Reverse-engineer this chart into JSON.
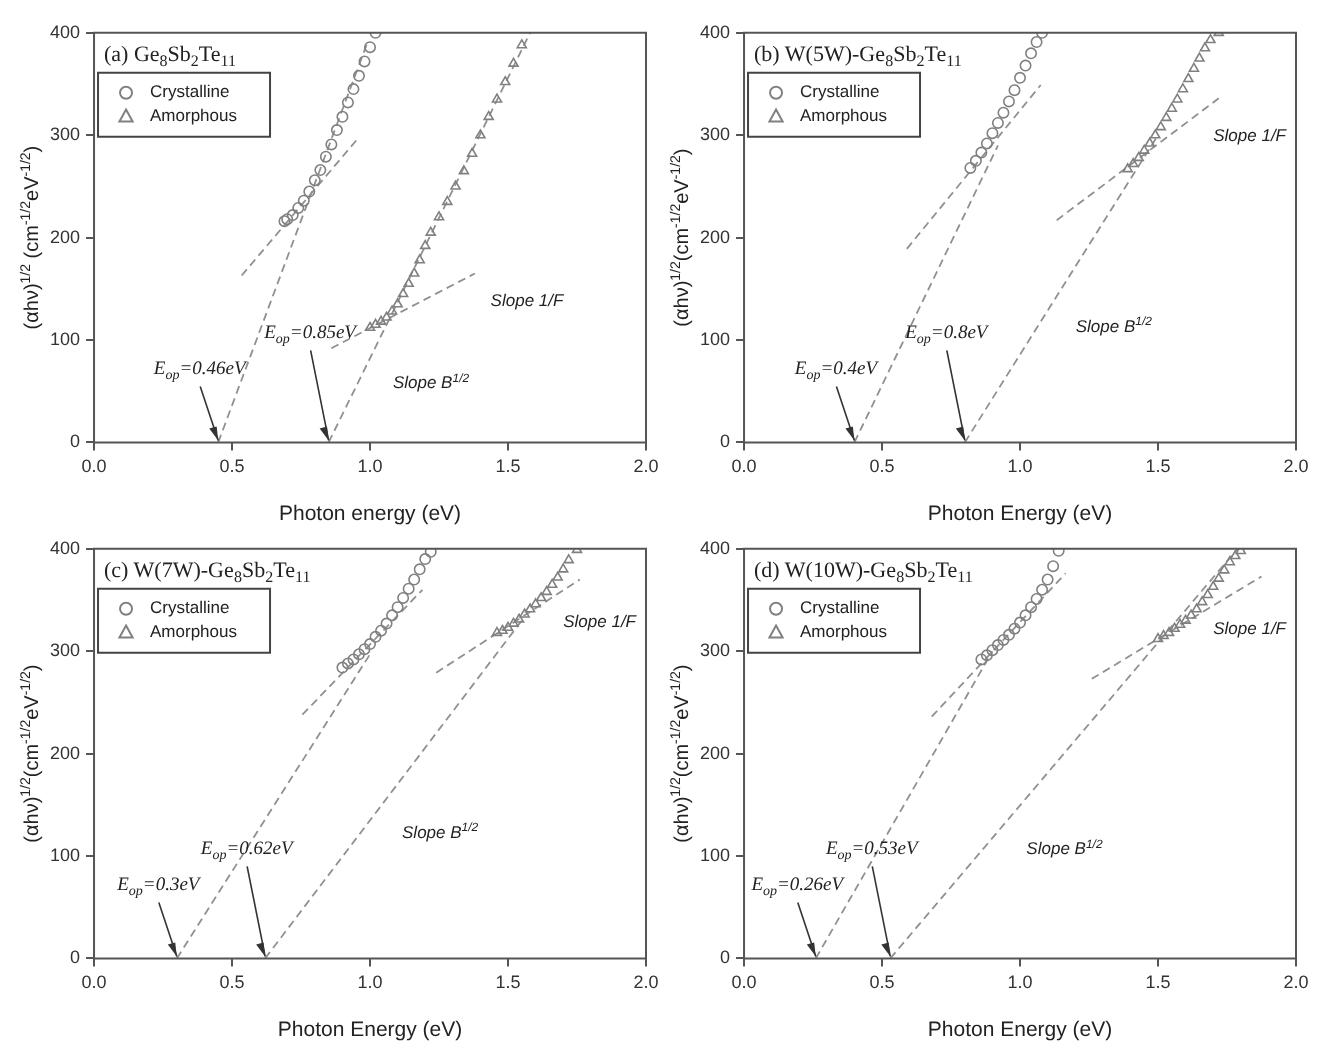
{
  "chart_data": [
    {
      "type": "scatter",
      "title": "(a) Ge$_{8}$Sb$_{2}$Te$_{11}$",
      "xlabel": "Photon energy (eV)",
      "ylabel": "(αhν)$^{1/2}$ (cm$^{-1/2}$eV$^{-1/2}$)",
      "xlim": [
        0,
        2
      ],
      "ylim": [
        0,
        400
      ],
      "xticks": [
        {
          "value": 0,
          "label": "0.0"
        },
        {
          "value": 0.5,
          "label": "0.5"
        },
        {
          "value": 1,
          "label": "1.0"
        },
        {
          "value": 1.5,
          "label": "1.5"
        },
        {
          "value": 2,
          "label": "2.0"
        }
      ],
      "yticks": [
        0,
        100,
        200,
        300,
        400
      ],
      "grid": false,
      "legend": "top left",
      "series": [
        {
          "name": "Crystalline",
          "type": "scatter",
          "marker": "circle",
          "color": "#808080",
          "x": [
            0.69,
            0.7,
            0.72,
            0.74,
            0.76,
            0.78,
            0.8,
            0.82,
            0.84,
            0.86,
            0.88,
            0.9,
            0.92,
            0.94,
            0.96,
            0.98,
            1.0,
            1.02
          ],
          "values": [
            216,
            218,
            222,
            229,
            236,
            245,
            256,
            266,
            279,
            291,
            305,
            318,
            332,
            345,
            358,
            372,
            386,
            400
          ]
        },
        {
          "name": "Amorphous",
          "type": "scatter",
          "marker": "triangle",
          "color": "#808080",
          "x": [
            1.0,
            1.02,
            1.04,
            1.06,
            1.08,
            1.1,
            1.12,
            1.14,
            1.16,
            1.18,
            1.2,
            1.22,
            1.25,
            1.28,
            1.31,
            1.34,
            1.37,
            1.4,
            1.43,
            1.46,
            1.49,
            1.52,
            1.55
          ],
          "values": [
            112,
            115,
            118,
            122,
            128,
            135,
            145,
            155,
            165,
            178,
            192,
            205,
            220,
            235,
            250,
            265,
            282,
            300,
            318,
            335,
            352,
            370,
            388
          ]
        },
        {
          "type": "line",
          "line_style": "dashed",
          "marker": "none",
          "color": "#909090",
          "x": [
            0.45,
            0.99
          ],
          "values": [
            0,
            390
          ]
        },
        {
          "type": "line",
          "line_style": "dashed",
          "marker": "none",
          "color": "#909090",
          "x": [
            0.535,
            0.96
          ],
          "values": [
            163,
            298
          ]
        },
        {
          "type": "line",
          "line_style": "dashed",
          "marker": "none",
          "color": "#909090",
          "x": [
            0.85,
            1.58
          ],
          "values": [
            0,
            400
          ]
        },
        {
          "type": "line",
          "line_style": "dashed",
          "marker": "none",
          "color": "#909090",
          "x": [
            0.86,
            1.38
          ],
          "values": [
            92,
            165
          ]
        }
      ],
      "annotations": [
        {
          "text": "E$_{op}$=0.46eV",
          "x": 0.45,
          "y": 0
        },
        {
          "text": "E$_{op}$=0.85eV",
          "x": 0.85,
          "y": 0
        },
        {
          "text": "Slope 1/F",
          "x": 1.35,
          "y": 160.8
        },
        {
          "text": "Slope B$^{1/2}$",
          "x": 0.996,
          "y": 80
        }
      ]
    },
    {
      "type": "scatter",
      "title": "(b) W(5W)-Ge$_{8}$Sb$_{2}$Te$_{11}$",
      "xlabel": "Photon Energy (eV)",
      "ylabel": "(αhν)$^{1/2}$(cm$^{-1/2}$eV$^{-1/2}$)",
      "xlim": [
        0,
        2
      ],
      "ylim": [
        0,
        400
      ],
      "xticks": [
        {
          "value": 0,
          "label": "0.0"
        },
        {
          "value": 0.5,
          "label": "0.5"
        },
        {
          "value": 1,
          "label": "1.0"
        },
        {
          "value": 1.5,
          "label": "1.5"
        },
        {
          "value": 2,
          "label": "2.0"
        }
      ],
      "yticks": [
        0,
        100,
        200,
        300,
        400
      ],
      "grid": false,
      "legend": "top left",
      "series": [
        {
          "name": "Crystalline",
          "type": "scatter",
          "marker": "circle",
          "color": "#808080",
          "x": [
            0.82,
            0.84,
            0.86,
            0.88,
            0.9,
            0.92,
            0.94,
            0.96,
            0.98,
            1.0,
            1.02,
            1.04,
            1.06,
            1.08
          ],
          "values": [
            268,
            275,
            283,
            292,
            302,
            312,
            322,
            333,
            344,
            356,
            368,
            380,
            391,
            400
          ]
        },
        {
          "name": "Amorphous",
          "type": "scatter",
          "marker": "triangle",
          "color": "#808080",
          "x": [
            1.39,
            1.41,
            1.43,
            1.45,
            1.47,
            1.49,
            1.51,
            1.53,
            1.55,
            1.57,
            1.59,
            1.61,
            1.63,
            1.65,
            1.67,
            1.69,
            1.72
          ],
          "values": [
            267,
            272,
            278,
            285,
            292,
            300,
            308,
            317,
            326,
            335,
            345,
            355,
            365,
            375,
            385,
            393,
            400
          ]
        },
        {
          "type": "line",
          "line_style": "dashed",
          "marker": "none",
          "color": "#909090",
          "x": [
            0.4,
            0.92
          ],
          "values": [
            0,
            290
          ]
        },
        {
          "type": "line",
          "line_style": "dashed",
          "marker": "none",
          "color": "#909090",
          "x": [
            0.59,
            1.075
          ],
          "values": [
            189,
            349
          ]
        },
        {
          "type": "line",
          "line_style": "dashed",
          "marker": "none",
          "color": "#909090",
          "x": [
            0.8,
            1.5
          ],
          "values": [
            0,
            300
          ]
        },
        {
          "type": "line",
          "line_style": "dashed",
          "marker": "none",
          "color": "#909090",
          "x": [
            1.133,
            1.72
          ],
          "values": [
            217,
            336
          ]
        }
      ],
      "annotations": [
        {
          "text": "E$_{op}$=0.4eV",
          "x": 0.4,
          "y": 0
        },
        {
          "text": "E$_{op}$=0.8eV",
          "x": 0.8,
          "y": 0
        },
        {
          "text": "Slope 1/F",
          "x": 1.65,
          "y": 321.8
        },
        {
          "text": "Slope B$^{1/2}$",
          "x": 1.115,
          "y": 135
        }
      ]
    },
    {
      "type": "scatter",
      "title": "(c) W(7W)-Ge$_{8}$Sb$_{2}$Te$_{11}$",
      "xlabel": "Photon Energy (eV)",
      "ylabel": "(αhν)$^{1/2}$(cm$^{-1/2}$eV$^{-1/2}$)",
      "xlim": [
        0,
        2
      ],
      "ylim": [
        0,
        400
      ],
      "xticks": [
        {
          "value": 0,
          "label": "0.0"
        },
        {
          "value": 0.5,
          "label": "0.5"
        },
        {
          "value": 1,
          "label": "1.0"
        },
        {
          "value": 1.5,
          "label": "1.5"
        },
        {
          "value": 2,
          "label": "2.0"
        }
      ],
      "yticks": [
        0,
        100,
        200,
        300,
        400
      ],
      "grid": false,
      "legend": "top left",
      "series": [
        {
          "name": "Crystalline",
          "type": "scatter",
          "marker": "circle",
          "color": "#808080",
          "x": [
            0.9,
            0.92,
            0.94,
            0.96,
            0.98,
            1.0,
            1.02,
            1.04,
            1.06,
            1.08,
            1.1,
            1.12,
            1.14,
            1.16,
            1.18,
            1.2,
            1.22
          ],
          "values": [
            284,
            288,
            292,
            297,
            302,
            307,
            314,
            320,
            327,
            335,
            343,
            352,
            361,
            370,
            380,
            390,
            397
          ]
        },
        {
          "name": "Amorphous",
          "type": "scatter",
          "marker": "triangle",
          "color": "#808080",
          "x": [
            1.46,
            1.48,
            1.5,
            1.52,
            1.54,
            1.56,
            1.58,
            1.6,
            1.62,
            1.64,
            1.66,
            1.68,
            1.7,
            1.72,
            1.75
          ],
          "values": [
            318,
            320,
            323,
            327,
            331,
            336,
            341,
            346,
            352,
            358,
            365,
            372,
            380,
            389,
            399
          ]
        },
        {
          "type": "line",
          "line_style": "dashed",
          "marker": "none",
          "color": "#909090",
          "x": [
            0.3,
            1.0
          ],
          "values": [
            0,
            297
          ]
        },
        {
          "type": "line",
          "line_style": "dashed",
          "marker": "none",
          "color": "#909090",
          "x": [
            0.755,
            1.19
          ],
          "values": [
            238,
            360
          ]
        },
        {
          "type": "line",
          "line_style": "dashed",
          "marker": "none",
          "color": "#909090",
          "x": [
            0.62,
            1.55
          ],
          "values": [
            0,
            330
          ]
        },
        {
          "type": "line",
          "line_style": "dashed",
          "marker": "none",
          "color": "#909090",
          "x": [
            1.24,
            1.76
          ],
          "values": [
            279,
            370
          ]
        }
      ],
      "annotations": [
        {
          "text": "E$_{op}$=0.3eV",
          "x": 0.3,
          "y": 0
        },
        {
          "text": "E$_{op}$=0.62eV",
          "x": 0.62,
          "y": 0
        },
        {
          "text": "Slope 1/F",
          "x": 1.65,
          "y": 350.75
        },
        {
          "text": "Slope B$^{1/2}$",
          "x": 1.029,
          "y": 145
        }
      ]
    },
    {
      "type": "scatter",
      "title": "(d) W(10W)-Ge$_{8}$Sb$_{2}$Te$_{11}$",
      "xlabel": "Photon Energy (eV)",
      "ylabel": "(αhν)$^{1/2}$(cm$^{-1/2}$eV$^{-1/2}$)",
      "xlim": [
        0,
        2
      ],
      "ylim": [
        0,
        400
      ],
      "xticks": [
        {
          "value": 0,
          "label": "0.0"
        },
        {
          "value": 0.5,
          "label": "0.5"
        },
        {
          "value": 1,
          "label": "1.0"
        },
        {
          "value": 1.5,
          "label": "1.5"
        },
        {
          "value": 2,
          "label": "2.0"
        }
      ],
      "yticks": [
        0,
        100,
        200,
        300,
        400
      ],
      "grid": false,
      "legend": "top left",
      "series": [
        {
          "name": "Crystalline",
          "type": "scatter",
          "marker": "circle",
          "color": "#808080",
          "x": [
            0.86,
            0.88,
            0.9,
            0.92,
            0.94,
            0.96,
            0.98,
            1.0,
            1.02,
            1.04,
            1.06,
            1.08,
            1.1,
            1.12,
            1.14
          ],
          "values": [
            292,
            296,
            301,
            306,
            311,
            316,
            322,
            328,
            335,
            343,
            351,
            360,
            370,
            383,
            398
          ]
        },
        {
          "name": "Amorphous",
          "type": "scatter",
          "marker": "triangle",
          "color": "#808080",
          "x": [
            1.5,
            1.52,
            1.54,
            1.56,
            1.58,
            1.6,
            1.62,
            1.64,
            1.66,
            1.68,
            1.7,
            1.72,
            1.74,
            1.76,
            1.78,
            1.8
          ],
          "values": [
            312,
            315,
            318,
            322,
            326,
            330,
            335,
            341,
            348,
            355,
            363,
            371,
            379,
            387,
            393,
            398
          ]
        },
        {
          "type": "line",
          "line_style": "dashed",
          "marker": "none",
          "color": "#909090",
          "x": [
            0.26,
            0.9
          ],
          "values": [
            0,
            300
          ]
        },
        {
          "type": "line",
          "line_style": "dashed",
          "marker": "none",
          "color": "#909090",
          "x": [
            0.68,
            1.165
          ],
          "values": [
            236,
            376
          ]
        },
        {
          "type": "line",
          "line_style": "dashed",
          "marker": "none",
          "color": "#909090",
          "x": [
            0.53,
            1.788
          ],
          "values": [
            0,
            400
          ]
        },
        {
          "type": "line",
          "line_style": "dashed",
          "marker": "none",
          "color": "#909090",
          "x": [
            1.26,
            1.875
          ],
          "values": [
            273,
            373
          ]
        }
      ],
      "annotations": [
        {
          "text": "E$_{op}$=0.26eV",
          "x": 0.26,
          "y": 0
        },
        {
          "text": "E$_{op}$=0.53eV",
          "x": 0.53,
          "y": 0
        },
        {
          "text": "Slope 1/F",
          "x": 1.7,
          "y": 344.5
        },
        {
          "text": "Slope B$^{1/2}$",
          "x": 0.936,
          "y": 129
        }
      ]
    }
  ]
}
